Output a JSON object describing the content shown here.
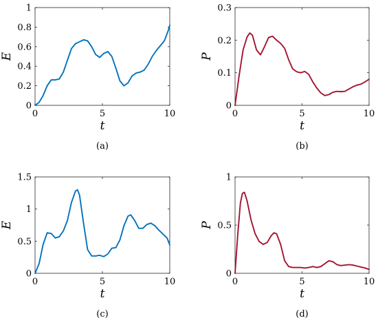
{
  "chart_data": [
    {
      "type": "line",
      "caption": "(a)",
      "xlabel": "t",
      "ylabel": "E",
      "xlim": [
        0,
        10
      ],
      "ylim": [
        0,
        1
      ],
      "xticks": [
        "0",
        "5",
        "10"
      ],
      "yticks": [
        "0",
        "0.2",
        "0.4",
        "0.6",
        "0.8",
        "1"
      ],
      "color": "#0072BD",
      "x": [
        0,
        0.3,
        0.6,
        0.9,
        1.2,
        1.5,
        1.8,
        2.1,
        2.4,
        2.7,
        3.0,
        3.3,
        3.6,
        3.9,
        4.2,
        4.5,
        4.8,
        5.1,
        5.4,
        5.7,
        6.0,
        6.3,
        6.6,
        6.9,
        7.2,
        7.5,
        7.8,
        8.1,
        8.4,
        8.7,
        9.0,
        9.3,
        9.6,
        9.9,
        10.0
      ],
      "y": [
        0,
        0.03,
        0.1,
        0.2,
        0.26,
        0.26,
        0.27,
        0.34,
        0.46,
        0.58,
        0.63,
        0.65,
        0.67,
        0.66,
        0.6,
        0.52,
        0.49,
        0.53,
        0.55,
        0.5,
        0.38,
        0.25,
        0.2,
        0.23,
        0.3,
        0.33,
        0.34,
        0.36,
        0.42,
        0.5,
        0.56,
        0.61,
        0.66,
        0.77,
        0.82
      ]
    },
    {
      "type": "line",
      "caption": "(b)",
      "xlabel": "t",
      "ylabel": "P",
      "xlim": [
        0,
        10
      ],
      "ylim": [
        0,
        0.3
      ],
      "xticks": [
        "0",
        "5",
        "10"
      ],
      "yticks": [
        "0",
        "0.1",
        "0.2",
        "0.3"
      ],
      "color": "#A2142F",
      "x": [
        0,
        0.3,
        0.6,
        0.9,
        1.1,
        1.3,
        1.6,
        1.9,
        2.2,
        2.5,
        2.8,
        3.1,
        3.4,
        3.7,
        4.0,
        4.3,
        4.6,
        4.9,
        5.2,
        5.5,
        5.8,
        6.1,
        6.4,
        6.7,
        7.0,
        7.3,
        7.6,
        7.9,
        8.2,
        8.5,
        8.8,
        9.1,
        9.4,
        9.7,
        10.0
      ],
      "y": [
        0,
        0.09,
        0.17,
        0.21,
        0.222,
        0.215,
        0.17,
        0.155,
        0.18,
        0.208,
        0.212,
        0.2,
        0.19,
        0.175,
        0.14,
        0.112,
        0.103,
        0.1,
        0.104,
        0.095,
        0.072,
        0.053,
        0.038,
        0.03,
        0.033,
        0.04,
        0.043,
        0.042,
        0.043,
        0.05,
        0.057,
        0.062,
        0.065,
        0.072,
        0.08
      ]
    },
    {
      "type": "line",
      "caption": "(c)",
      "xlabel": "t",
      "ylabel": "E",
      "xlim": [
        0,
        10
      ],
      "ylim": [
        0,
        1.5
      ],
      "xticks": [
        "0",
        "5",
        "10"
      ],
      "yticks": [
        "0",
        "0.5",
        "1",
        "1.5"
      ],
      "color": "#0072BD",
      "x": [
        0,
        0.3,
        0.6,
        0.9,
        1.2,
        1.5,
        1.8,
        2.1,
        2.4,
        2.7,
        3.0,
        3.15,
        3.3,
        3.6,
        3.9,
        4.2,
        4.5,
        4.8,
        5.1,
        5.4,
        5.7,
        6.0,
        6.3,
        6.6,
        6.9,
        7.1,
        7.4,
        7.7,
        8.0,
        8.3,
        8.6,
        8.9,
        9.2,
        9.5,
        9.8,
        10.0
      ],
      "y": [
        0,
        0.15,
        0.45,
        0.63,
        0.62,
        0.55,
        0.57,
        0.66,
        0.82,
        1.1,
        1.28,
        1.3,
        1.22,
        0.78,
        0.37,
        0.27,
        0.27,
        0.28,
        0.26,
        0.3,
        0.39,
        0.4,
        0.52,
        0.74,
        0.89,
        0.91,
        0.82,
        0.7,
        0.7,
        0.76,
        0.78,
        0.74,
        0.67,
        0.61,
        0.55,
        0.44
      ]
    },
    {
      "type": "line",
      "caption": "(d)",
      "xlabel": "t",
      "ylabel": "P",
      "xlim": [
        0,
        10
      ],
      "ylim": [
        0,
        1
      ],
      "xticks": [
        "0",
        "5",
        "10"
      ],
      "yticks": [
        "0",
        "0.5",
        "1"
      ],
      "color": "#A2142F",
      "x": [
        0,
        0.2,
        0.4,
        0.55,
        0.7,
        0.9,
        1.2,
        1.5,
        1.8,
        2.1,
        2.4,
        2.7,
        2.9,
        3.1,
        3.4,
        3.7,
        4.0,
        4.3,
        4.6,
        4.9,
        5.2,
        5.5,
        5.8,
        6.1,
        6.4,
        6.7,
        7.0,
        7.3,
        7.6,
        7.9,
        8.2,
        8.5,
        8.8,
        9.1,
        9.4,
        9.7,
        10.0
      ],
      "y": [
        0,
        0.4,
        0.73,
        0.83,
        0.84,
        0.75,
        0.55,
        0.41,
        0.33,
        0.3,
        0.32,
        0.39,
        0.42,
        0.41,
        0.3,
        0.13,
        0.07,
        0.06,
        0.06,
        0.06,
        0.055,
        0.06,
        0.07,
        0.06,
        0.07,
        0.1,
        0.13,
        0.12,
        0.09,
        0.08,
        0.085,
        0.09,
        0.085,
        0.075,
        0.065,
        0.055,
        0.04
      ]
    }
  ]
}
